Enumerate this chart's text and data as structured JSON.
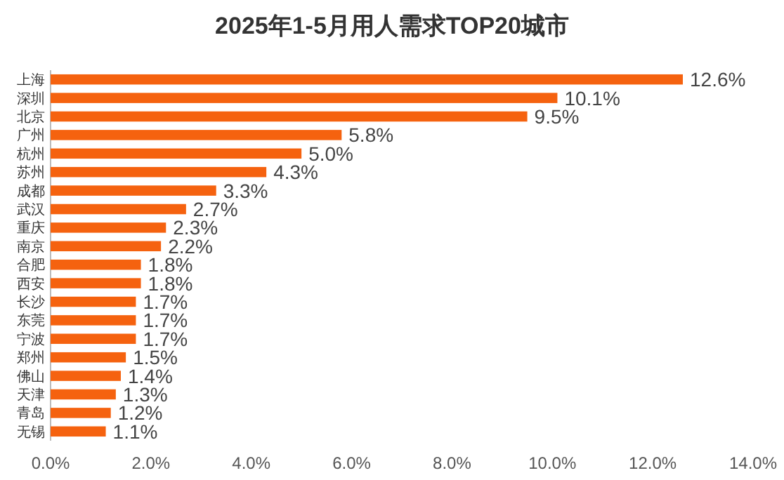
{
  "chart_data": {
    "type": "bar",
    "orientation": "horizontal",
    "title": "2025年1-5月用人需求TOP20城市",
    "categories": [
      "上海",
      "深圳",
      "北京",
      "广州",
      "杭州",
      "苏州",
      "成都",
      "武汉",
      "重庆",
      "南京",
      "合肥",
      "西安",
      "长沙",
      "东莞",
      "宁波",
      "郑州",
      "佛山",
      "天津",
      "青岛",
      "无锡"
    ],
    "values": [
      12.6,
      10.1,
      9.5,
      5.8,
      5.0,
      4.3,
      3.3,
      2.7,
      2.3,
      2.2,
      1.8,
      1.8,
      1.7,
      1.7,
      1.7,
      1.5,
      1.4,
      1.3,
      1.2,
      1.1
    ],
    "value_labels": [
      "12.6%",
      "10.1%",
      "9.5%",
      "5.8%",
      "5.0%",
      "4.3%",
      "3.3%",
      "2.7%",
      "2.3%",
      "2.2%",
      "1.8%",
      "1.8%",
      "1.7%",
      "1.7%",
      "1.7%",
      "1.5%",
      "1.4%",
      "1.3%",
      "1.2%",
      "1.1%"
    ],
    "color": "#f5620f",
    "xlim": [
      0,
      14
    ],
    "xticks": [
      {
        "value": 0,
        "label": "0.0%"
      },
      {
        "value": 2,
        "label": "2.0%"
      },
      {
        "value": 4,
        "label": "4.0%"
      },
      {
        "value": 6,
        "label": "6.0%"
      },
      {
        "value": 8,
        "label": "8.0%"
      },
      {
        "value": 10,
        "label": "10.0%"
      },
      {
        "value": 12,
        "label": "12.0%"
      },
      {
        "value": 14,
        "label": "14.0%"
      }
    ],
    "grid": false
  }
}
